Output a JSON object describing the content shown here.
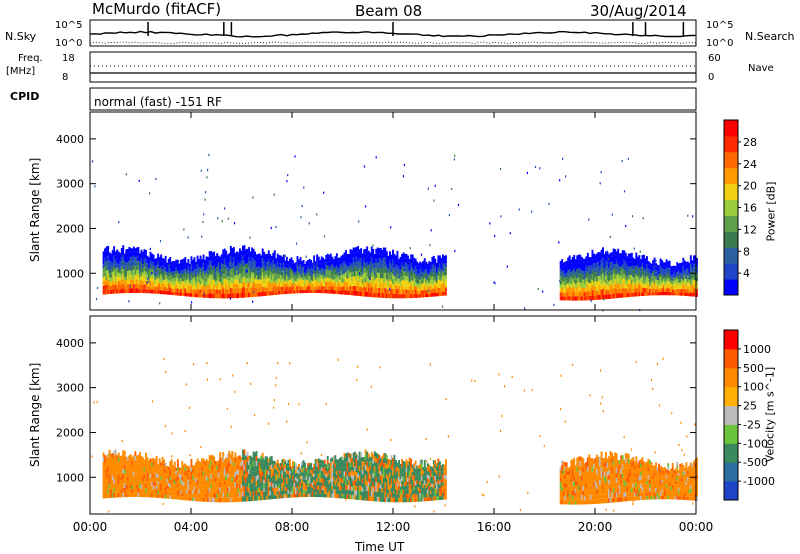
{
  "header": {
    "station": "McMurdo (fitACF)",
    "beam": "Beam 08",
    "date": "30/Aug/2014"
  },
  "noise_panel": {
    "left_label": "N.Sky",
    "right_label": "N.Search",
    "ticks_left": [
      "10^5",
      "10^0"
    ],
    "ticks_right": [
      "10^5",
      "10^0"
    ]
  },
  "freq_panel": {
    "left_label_1": "Freq.",
    "left_label_2": "[MHz]",
    "right_label": "Nave",
    "ticks_left": [
      "18",
      "8"
    ],
    "ticks_right": [
      "60",
      "0"
    ]
  },
  "cpid": {
    "label": "CPID",
    "mode": "normal (fast) -151 RF"
  },
  "power_colorbar": {
    "title": "Power [dB]",
    "ticks": [
      "28",
      "24",
      "20",
      "16",
      "12",
      "8",
      "4"
    ],
    "colors": [
      "#0000ff",
      "#1f44c8",
      "#2b5fa0",
      "#3a7a4e",
      "#5f9f4a",
      "#9ccd3c",
      "#f0d010",
      "#ff9b00",
      "#ff6a00",
      "#ff2a00",
      "#ff0000"
    ]
  },
  "velocity_colorbar": {
    "title": "Velocity [m s^-1]",
    "ticks": [
      "1000",
      "500",
      "100",
      "25",
      "-25",
      "-100",
      "-500",
      "-1000"
    ],
    "colors": [
      "#1f44c8",
      "#2b6ea0",
      "#3a8a5e",
      "#6cc43c",
      "#bcbcbc",
      "#ffb000",
      "#ff8a00",
      "#ff5a00",
      "#ff0000"
    ]
  },
  "axes": {
    "ylabel": "Slant Range [km]",
    "yticks": [
      "4000",
      "3000",
      "2000",
      "1000"
    ],
    "xlabel": "Time UT",
    "xticks": [
      "00:00",
      "04:00",
      "08:00",
      "12:00",
      "16:00",
      "20:00",
      "00:00"
    ]
  },
  "chart_data": [
    {
      "type": "heatmap",
      "title": "Power",
      "xlabel": "Time UT",
      "ylabel": "Slant Range [km]",
      "xlim": [
        0,
        24
      ],
      "ylim": [
        180,
        4600
      ],
      "colorbar_label": "Power [dB]",
      "colorbar_ticks": [
        4,
        8,
        12,
        16,
        20,
        24,
        28
      ],
      "backscatter_bands": [
        {
          "start_h": 0.5,
          "end_h": 14.1,
          "min_range_km": 500,
          "max_range_km": 1400
        },
        {
          "start_h": 18.6,
          "end_h": 24.0,
          "min_range_km": 450,
          "max_range_km": 1350
        }
      ]
    },
    {
      "type": "heatmap",
      "title": "Velocity",
      "xlabel": "Time UT",
      "ylabel": "Slant Range [km]",
      "xlim": [
        0,
        24
      ],
      "ylim": [
        180,
        4600
      ],
      "colorbar_label": "Velocity [m s^-1]",
      "colorbar_ticks": [
        -1000,
        -500,
        -100,
        -25,
        25,
        100,
        500,
        1000
      ],
      "backscatter_bands": [
        {
          "start_h": 0.5,
          "end_h": 14.1,
          "min_range_km": 500,
          "max_range_km": 1400
        },
        {
          "start_h": 18.6,
          "end_h": 24.0,
          "min_range_km": 450,
          "max_range_km": 1350
        }
      ]
    }
  ]
}
